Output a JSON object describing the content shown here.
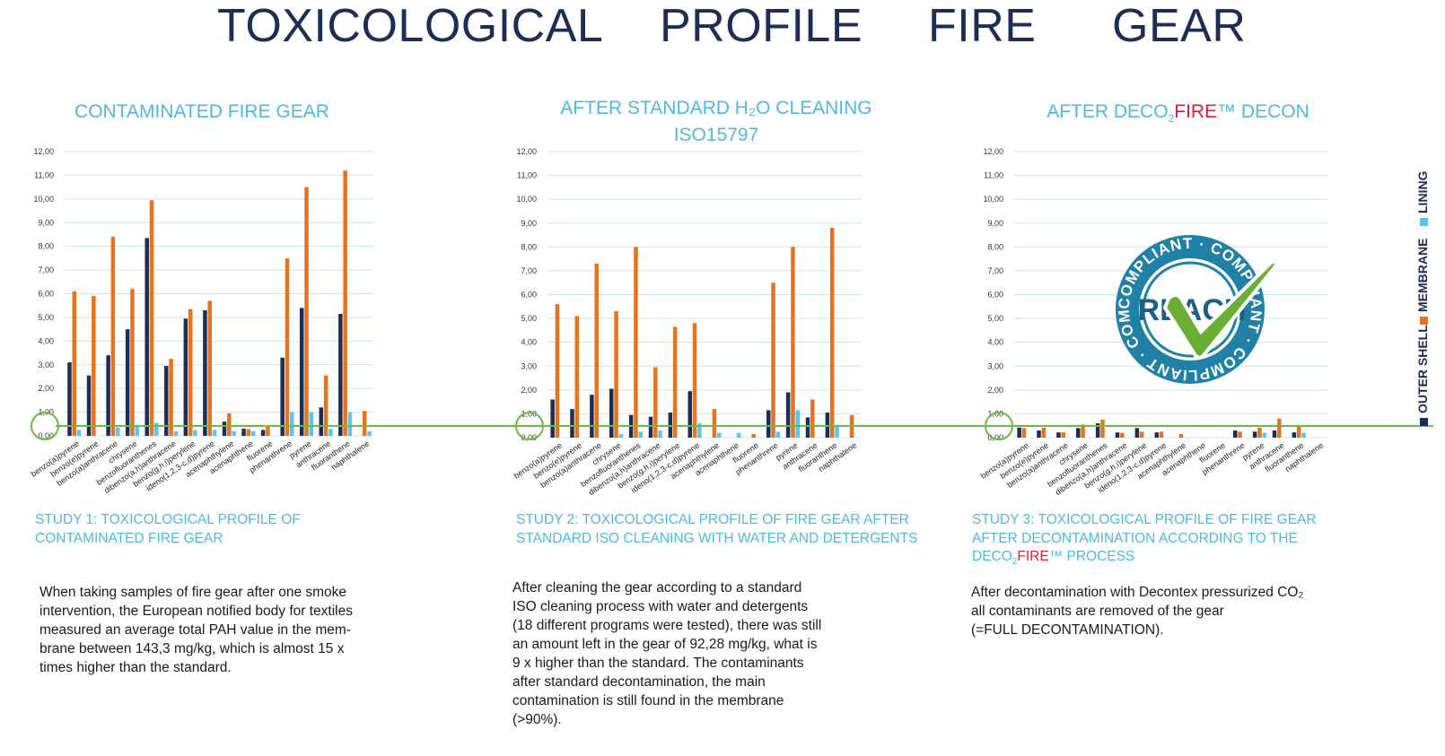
{
  "title": {
    "words": [
      "TOXICOLOGICAL",
      "PROFILE",
      "FIRE",
      "GEAR"
    ]
  },
  "panels": [
    {
      "title_line1": "CONTAMINATED FIRE GEAR",
      "title_line2": "",
      "caption_line1": "STUDY 1: TOXICOLOGICAL PROFILE OF",
      "caption_line2": "CONTAMINATED FIRE GEAR",
      "caption_line3": "",
      "description": [
        "When taking samples of fire gear after one smoke",
        "intervention, the European notified body for textiles",
        "measured an average total PAH value in the mem-",
        "brane between 143,3 mg/kg, which is almost 15 x",
        "times higher than the standard."
      ]
    },
    {
      "title_line1": "AFTER STANDARD H₂O CLEANING",
      "title_line2": "ISO15797",
      "caption_line1": "STUDY 2: TOXICOLOGICAL PROFILE OF FIRE GEAR AFTER",
      "caption_line2": "STANDARD ISO CLEANING WITH WATER AND DETERGENTS",
      "caption_line3": "",
      "description": [
        "After cleaning the gear according to a standard",
        "ISO cleaning process with water and detergents",
        "(18 different programs were tested), there was still",
        "an amount left in the gear of 92,28 mg/kg, what is",
        "9 x higher than the standard. The contaminants",
        "after standard decontamination, the main",
        "contamination is still found in the membrane",
        "(>90%)."
      ]
    },
    {
      "title_line1_pre": "AFTER DECO",
      "title_line1_sub": "2",
      "title_line1_red": "FIRE",
      "title_line1_post": "™ DECON",
      "caption_line1": "STUDY 3: TOXICOLOGICAL PROFILE OF FIRE GEAR",
      "caption_line2": "AFTER DECONTAMINATION ACCORDING TO THE",
      "caption_line3_pre": "DECO",
      "caption_line3_sub": "2",
      "caption_line3_red": "FIRE",
      "caption_line3_post": "™ PROCESS",
      "description": [
        "After decontamination with Decontex pressurized CO₂",
        "all contaminants are removed of the gear",
        "(=FULL DECONTAMINATION)."
      ]
    }
  ],
  "legend": {
    "items": [
      {
        "label": "OUTER SHELL",
        "color": "#1c2e54"
      },
      {
        "label": "MEMBRANE",
        "color": "#e8731e"
      },
      {
        "label": "LINING",
        "color": "#5cc6e8"
      }
    ]
  },
  "seal": {
    "ring_text": "COMPLIANT · COMPLIANT · COMPLIANT · COMPLIANT ·",
    "center_text": "REACH"
  },
  "colors": {
    "outer_shell": "#1c2e54",
    "membrane": "#e8731e",
    "lining": "#5cc6e8",
    "threshold_line": "#6db846",
    "title": "#1c2e54",
    "accent_blue": "#4fb9dc",
    "brand_red": "#d81e3a"
  },
  "chart_data": [
    {
      "type": "bar",
      "categories": [
        "benzo(a)pyrene",
        "benzo(e)pyrene",
        "benzo(a)anthracene",
        "chrysene",
        "benzofluoranthenes",
        "dibenzo(a,h)anthracene",
        "benzo(g,h,i)perylene",
        "ideno(1,2,3-c,d)pyrene",
        "acenaphthylene",
        "acenaphthene",
        "fluorene",
        "phenanthrene",
        "pyrene",
        "anthracene",
        "fluoranthene",
        "naphthalene"
      ],
      "ytick_labels": [
        "0,00",
        "1,00",
        "2,00",
        "3,00",
        "4,00",
        "5,00",
        "6,00",
        "7,00",
        "8,00",
        "9,00",
        "10,00",
        "11,00",
        "12,00"
      ],
      "ylim": [
        0,
        12
      ],
      "threshold": 1.0,
      "series": [
        {
          "name": "OUTER SHELL",
          "values": [
            3.1,
            2.55,
            3.4,
            4.5,
            8.35,
            2.95,
            4.95,
            5.3,
            0.6,
            0.3,
            0.25,
            3.3,
            5.4,
            1.2,
            5.15,
            0
          ]
        },
        {
          "name": "MEMBRANE",
          "values": [
            6.1,
            5.9,
            8.4,
            6.2,
            9.95,
            3.25,
            5.35,
            5.7,
            0.95,
            0.28,
            0.4,
            7.5,
            10.5,
            2.55,
            11.2,
            1.05
          ]
        },
        {
          "name": "LINING",
          "values": [
            0.25,
            0,
            0.35,
            0.4,
            0.55,
            0.2,
            0.25,
            0.25,
            0.2,
            0.2,
            0,
            1.0,
            1.0,
            0.3,
            1.0,
            0.2
          ]
        }
      ]
    },
    {
      "type": "bar",
      "categories": [
        "benzo(a)pyrene",
        "benzo(e)pyrene",
        "benzo(a)anthracene",
        "chrysene",
        "benzofluoranthenes",
        "dibenzo(a,h)anthracene",
        "benzo(g,h,i)perylene",
        "ideno(1,2,3-c,d)pyrene",
        "acenaphthylene",
        "acenaphthene",
        "fluorene",
        "phenanthrene",
        "pyrene",
        "anthracene",
        "fluoranthene",
        "naphthalene"
      ],
      "ytick_labels": [
        "0,00",
        "1,00",
        "2,00",
        "3,00",
        "4,00",
        "5,00",
        "6,00",
        "7,00",
        "8,00",
        "9,00",
        "10,00",
        "11,00",
        "12,00"
      ],
      "ylim": [
        0,
        12
      ],
      "threshold": 1.0,
      "series": [
        {
          "name": "OUTER SHELL",
          "values": [
            1.6,
            1.2,
            1.8,
            2.05,
            0.95,
            0.88,
            1.05,
            1.95,
            0,
            0,
            0,
            1.15,
            1.9,
            0.85,
            1.05,
            0
          ]
        },
        {
          "name": "MEMBRANE",
          "values": [
            5.6,
            5.1,
            7.3,
            5.3,
            8.0,
            2.95,
            4.65,
            4.8,
            1.2,
            0,
            0.15,
            6.5,
            8.0,
            1.6,
            8.8,
            0.95
          ]
        },
        {
          "name": "LINING",
          "values": [
            0,
            0,
            0,
            0.15,
            0.25,
            0.3,
            0,
            0.6,
            0.2,
            0.2,
            0,
            0.25,
            1.15,
            0,
            0.5,
            0
          ]
        }
      ]
    },
    {
      "type": "bar",
      "categories": [
        "benzo(a)pyrene",
        "benzo(e)pyrene",
        "benzo(a)anthracene",
        "chrysene",
        "benzofluoranthenes",
        "dibenzo(a,h)anthracene",
        "benzo(g,h,i)perylene",
        "ideno(1,2,3-c,d)pyrene",
        "acenaphthylene",
        "acenaphthene",
        "fluorene",
        "phenanthrene",
        "pyrene",
        "anthracene",
        "fluoranthene",
        "naphthalene"
      ],
      "ytick_labels": [
        "0,00",
        "1,00",
        "2,00",
        "3,00",
        "4,00",
        "5,00",
        "6,00",
        "7,00",
        "8,00",
        "9,00",
        "10,00",
        "11,00",
        "12,00"
      ],
      "ylim": [
        0,
        12
      ],
      "threshold": 1.0,
      "series": [
        {
          "name": "OUTER SHELL",
          "values": [
            0.42,
            0.3,
            0.22,
            0.4,
            0.6,
            0.22,
            0.4,
            0.22,
            0,
            0,
            0,
            0.3,
            0.25,
            0.3,
            0.22,
            0
          ]
        },
        {
          "name": "MEMBRANE",
          "values": [
            0.4,
            0.42,
            0.22,
            0.55,
            0.75,
            0.2,
            0.25,
            0.25,
            0.15,
            0,
            0,
            0.25,
            0.42,
            0.8,
            0.45,
            0
          ]
        },
        {
          "name": "LINING",
          "values": [
            0,
            0,
            0,
            0,
            0,
            0,
            0,
            0,
            0,
            0,
            0,
            0,
            0.2,
            0,
            0.2,
            0
          ]
        }
      ]
    }
  ]
}
